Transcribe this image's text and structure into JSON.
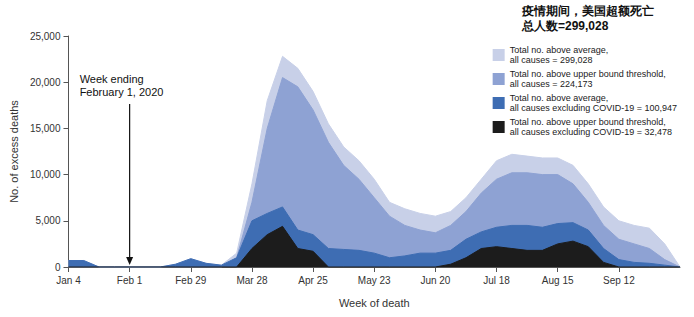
{
  "chart_data": {
    "type": "area",
    "x_label": "Week of death",
    "y_label": "No. of excess deaths",
    "categories": [
      "Jan 4",
      null,
      null,
      null,
      "Feb 1",
      null,
      null,
      null,
      "Feb 29",
      null,
      null,
      null,
      "Mar 28",
      null,
      null,
      null,
      "Apr 25",
      null,
      null,
      null,
      "May 23",
      null,
      null,
      null,
      "Jun 20",
      null,
      null,
      null,
      "Jul 18",
      null,
      null,
      null,
      "Aug 15",
      null,
      null,
      null,
      "Sep 12",
      null,
      null,
      null,
      null
    ],
    "series": [
      {
        "name": "Total no. above average, all causes = 299,028",
        "color": "#c8d0e8",
        "values": [
          700,
          700,
          0,
          0,
          0,
          0,
          0,
          300,
          900,
          400,
          200,
          1500,
          9000,
          18000,
          22800,
          21500,
          19000,
          15500,
          13000,
          11500,
          9500,
          7000,
          6300,
          5800,
          5500,
          6000,
          7500,
          9500,
          11500,
          12200,
          12000,
          11800,
          11800,
          11000,
          9000,
          6500,
          5000,
          4500,
          4200,
          2500,
          0
        ]
      },
      {
        "name": "Total no. above upper bound threshold, all causes = 224,173",
        "color": "#8ea2d3",
        "values": [
          0,
          0,
          0,
          0,
          0,
          0,
          0,
          0,
          0,
          0,
          0,
          1000,
          7000,
          15000,
          20500,
          19500,
          17000,
          13500,
          11000,
          9500,
          7500,
          5500,
          4500,
          4000,
          3700,
          4500,
          6000,
          8000,
          9500,
          10200,
          10200,
          10000,
          10000,
          9000,
          7000,
          4500,
          3000,
          2500,
          2000,
          800,
          0
        ]
      },
      {
        "name": "Total no. above average, all causes excluding COVID-19 = 100,947",
        "color": "#3e6db3",
        "values": [
          700,
          700,
          0,
          0,
          0,
          0,
          0,
          300,
          900,
          400,
          200,
          1000,
          5000,
          5800,
          6500,
          4000,
          3500,
          2000,
          1900,
          1800,
          1500,
          1000,
          1200,
          1500,
          1500,
          1800,
          3000,
          3800,
          4300,
          4500,
          4500,
          4300,
          4700,
          4800,
          4000,
          2000,
          800,
          500,
          400,
          200,
          0
        ]
      },
      {
        "name": "Total no. above upper bound threshold, all causes excluding COVID-19 = 32,478",
        "color": "#1c1c1c",
        "values": [
          0,
          0,
          0,
          0,
          0,
          0,
          0,
          0,
          0,
          0,
          0,
          0,
          2000,
          3500,
          4400,
          2000,
          1700,
          0,
          0,
          0,
          0,
          0,
          0,
          0,
          0,
          300,
          1000,
          2000,
          2200,
          2000,
          1800,
          1800,
          2500,
          2800,
          2200,
          500,
          0,
          0,
          0,
          0,
          0
        ]
      }
    ],
    "ylim": [
      0,
      25000
    ],
    "yticks": [
      0,
      {
        "value": 5000,
        "label": "5,000"
      },
      {
        "value": 10000,
        "label": "10,000"
      },
      {
        "value": 15000,
        "label": "15,000"
      },
      {
        "value": 20000,
        "label": "20,000"
      },
      {
        "value": 25000,
        "label": "25,000"
      }
    ],
    "grid": false,
    "legend": "top-right",
    "annotations": [
      {
        "text": "Week ending\nFebruary 1, 2020",
        "x": "Feb 1"
      },
      {
        "text": "疫情期间，美国超额死亡\n总人数=299,028"
      }
    ]
  }
}
